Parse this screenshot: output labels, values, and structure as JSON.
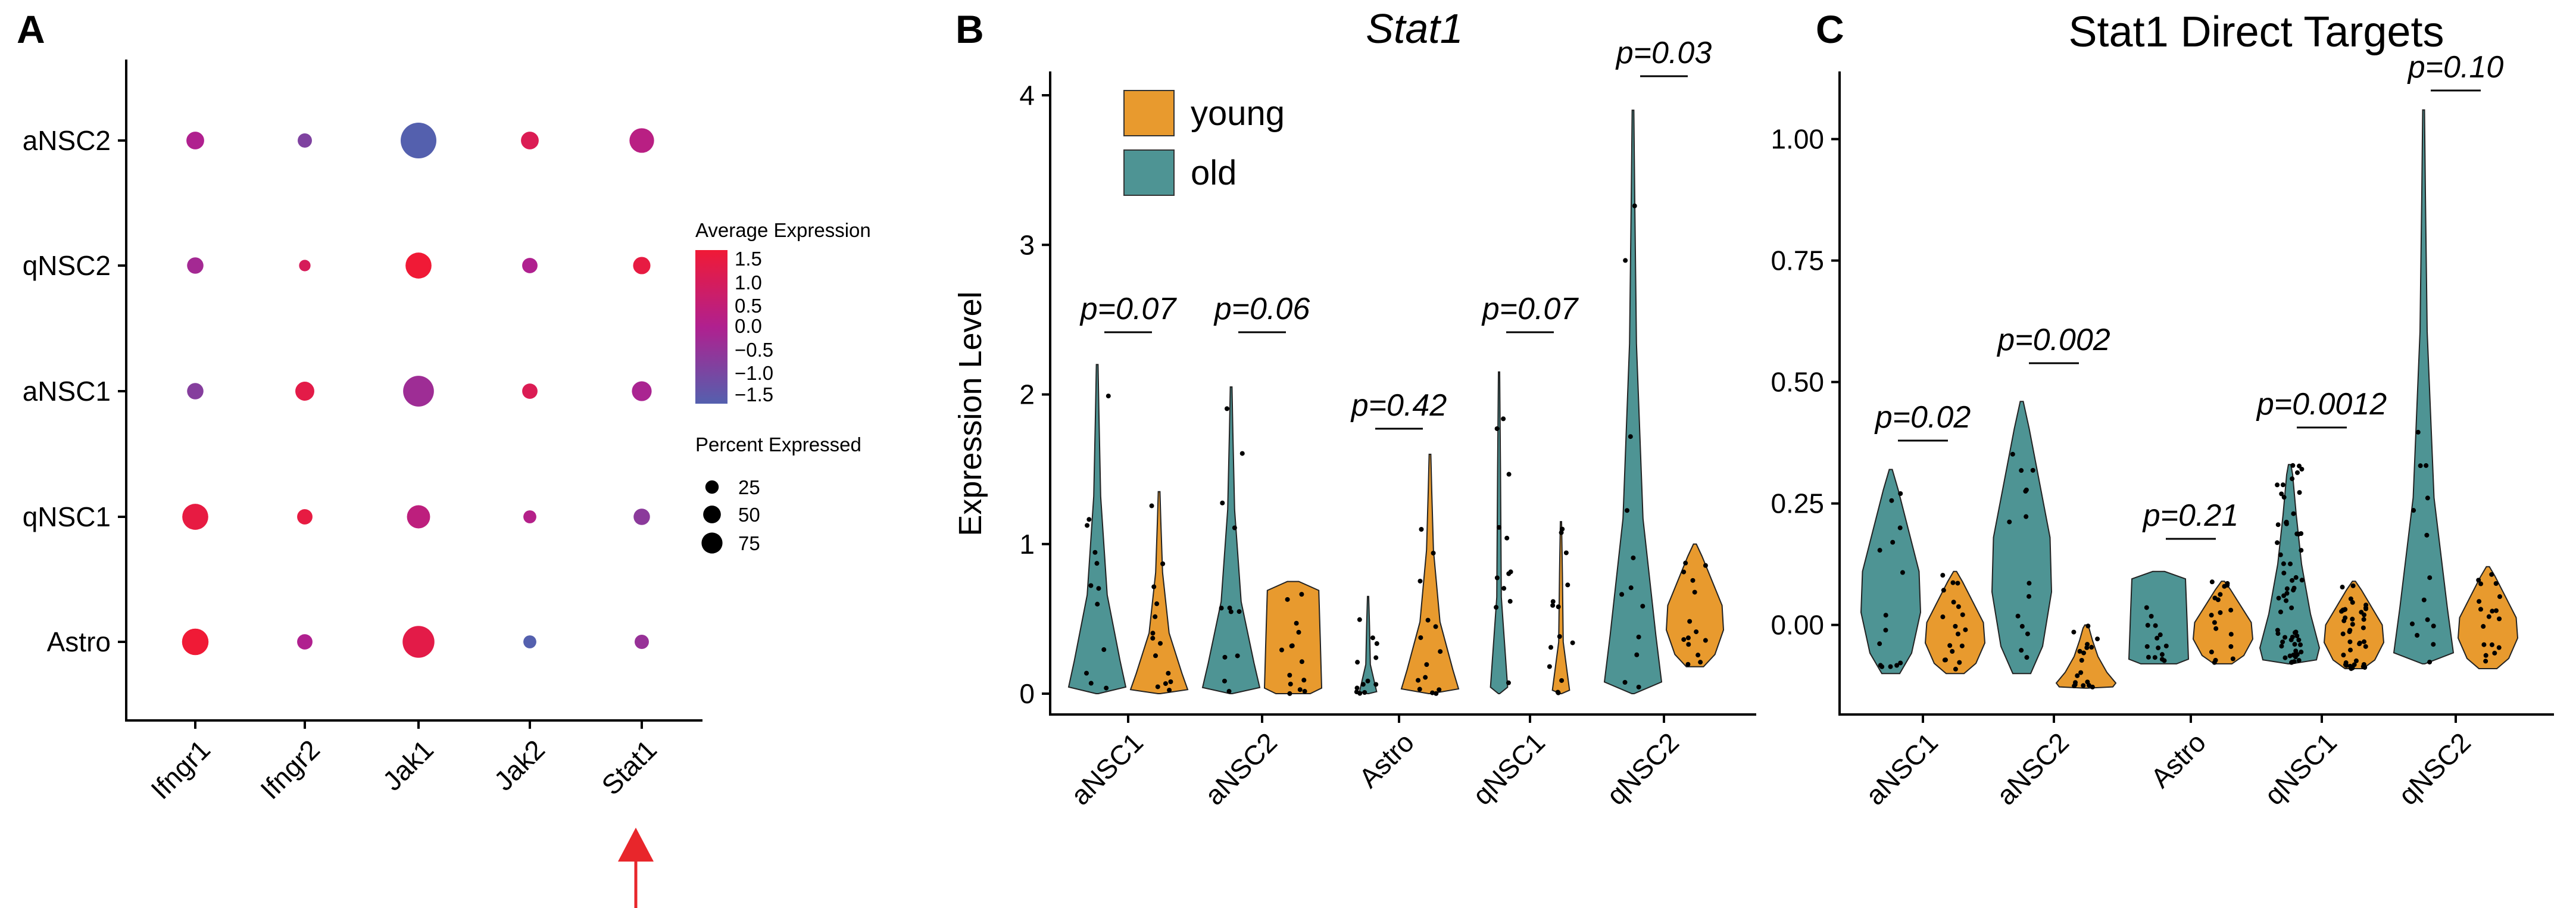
{
  "panel_labels": {
    "a": "A",
    "b": "B",
    "c": "C"
  },
  "colors": {
    "young": "#E89A2E",
    "old": "#4E9494",
    "expr_low": "#5460AE",
    "expr_mid": "#B0208F",
    "expr_high": "#F01A36",
    "arrow": "#E8262B"
  },
  "chart_data": [
    {
      "type": "dotplot",
      "panel": "A",
      "genes": [
        "Ifngr1",
        "Ifngr2",
        "Jak1",
        "Jak2",
        "Stat1"
      ],
      "cell_types": [
        "aNSC2",
        "qNSC2",
        "aNSC1",
        "qNSC1",
        "Astro"
      ],
      "avg_expression": [
        [
          0.0,
          -0.8,
          -1.5,
          1.0,
          0.2
        ],
        [
          -0.2,
          0.9,
          1.5,
          0.0,
          1.3
        ],
        [
          -0.7,
          1.2,
          -0.3,
          1.0,
          -0.1
        ],
        [
          1.3,
          1.3,
          0.3,
          0.1,
          -0.6
        ],
        [
          1.5,
          0.0,
          1.2,
          -1.5,
          -0.4
        ]
      ],
      "pct_expressed": [
        [
          15,
          8,
          85,
          15,
          35
        ],
        [
          12,
          4,
          40,
          10,
          14
        ],
        [
          12,
          18,
          60,
          10,
          20
        ],
        [
          40,
          10,
          30,
          6,
          12
        ],
        [
          42,
          10,
          65,
          6,
          8
        ]
      ],
      "legend": {
        "color_title": "Average Expression",
        "color_ticks": [
          "1.5",
          "1.0",
          "0.5",
          "0.0",
          "−0.5",
          "−1.0",
          "−1.5"
        ],
        "size_title": "Percent Expressed",
        "size_ticks": [
          "25",
          "50",
          "75"
        ]
      },
      "highlight_gene": "Stat1"
    },
    {
      "type": "violin",
      "panel": "B",
      "title": "Stat1",
      "ylabel": "Expression Level",
      "ylim": [
        0,
        4
      ],
      "yticks": [
        "0",
        "1",
        "2",
        "3",
        "4"
      ],
      "categories": [
        "aNSC1",
        "aNSC2",
        "Astro",
        "qNSC1",
        "qNSC2"
      ],
      "legend": [
        "young",
        "old"
      ],
      "p_values": [
        "p=0.07",
        "p=0.06",
        "p=0.42",
        "p=0.07",
        "p=0.03"
      ],
      "series": [
        {
          "name": "old",
          "max": [
            2.2,
            2.05,
            0.65,
            2.15,
            3.9
          ]
        },
        {
          "name": "young",
          "max": [
            1.35,
            0.75,
            1.6,
            1.15,
            1.0
          ]
        }
      ]
    },
    {
      "type": "violin",
      "panel": "C",
      "title": "Stat1 Direct Targets",
      "ylim": [
        -0.15,
        1.1
      ],
      "yticks": [
        "0.00",
        "0.25",
        "0.50",
        "0.75",
        "1.00"
      ],
      "categories": [
        "aNSC1",
        "aNSC2",
        "Astro",
        "qNSC1",
        "qNSC2"
      ],
      "p_values": [
        "p=0.02",
        "p=0.002",
        "p=0.21",
        "p=0.0012",
        "p=0.10"
      ],
      "series": [
        {
          "name": "old",
          "min": [
            -0.1,
            -0.1,
            -0.08,
            -0.08,
            -0.08
          ],
          "max": [
            0.32,
            0.46,
            0.11,
            0.33,
            1.06
          ]
        },
        {
          "name": "young",
          "min": [
            -0.1,
            -0.13,
            -0.08,
            -0.09,
            -0.09
          ],
          "max": [
            0.11,
            0.0,
            0.09,
            0.09,
            0.12
          ]
        }
      ]
    }
  ]
}
